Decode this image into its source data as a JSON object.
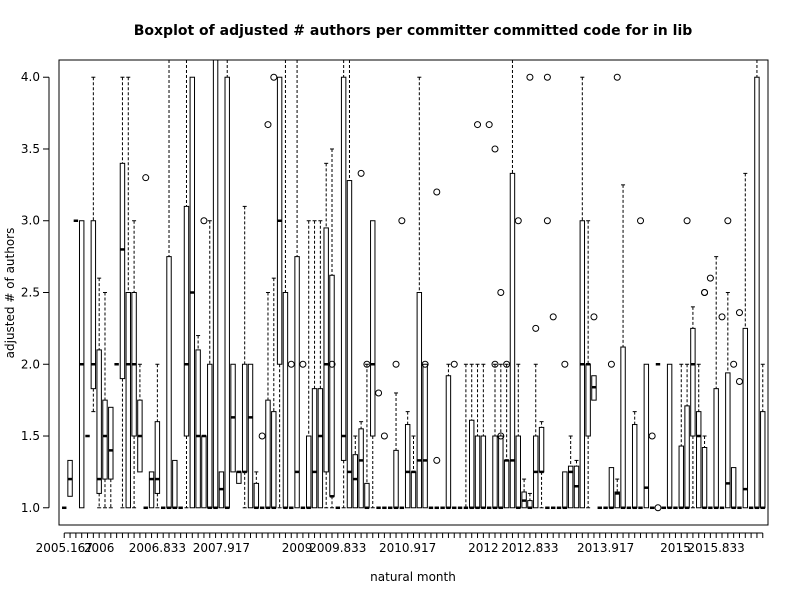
{
  "chart_data": {
    "type": "boxplot",
    "title": "Boxplot of adjusted # authors per committer committed code for in lib",
    "xlabel": "natural month",
    "ylabel": "adjusted # of authors",
    "ylim": [
      0.88,
      4.12
    ],
    "yticks": [
      1.0,
      1.5,
      2.0,
      2.5,
      3.0,
      3.5,
      4.0
    ],
    "ytick_labels": [
      "1.0",
      "1.5",
      "2.0",
      "2.5",
      "3.0",
      "3.5",
      "4.0"
    ],
    "x_tick_labels": [
      "2005.167",
      "2006",
      "2006.833",
      "2007.917",
      "2009",
      "2009.833",
      "2010.917",
      "2012",
      "2012.833",
      "2013.917",
      "2015",
      "2015.833"
    ],
    "x_tick_indices": [
      1,
      7,
      17,
      28,
      41,
      48,
      60,
      73,
      81,
      94,
      106,
      113
    ],
    "x_start": 2005.167,
    "x_step": 0.0833,
    "box_count": 121,
    "grid": false,
    "boxes": [
      {
        "i": 1,
        "stats": [
          1,
          1,
          1,
          1,
          1
        ]
      },
      {
        "i": 2,
        "stats": [
          1.08,
          1.08,
          1.2,
          1.33,
          1.33
        ]
      },
      {
        "i": 3,
        "stats": [
          3.0,
          3.0,
          3.0,
          3.0,
          3.0
        ]
      },
      {
        "i": 4,
        "stats": [
          1.0,
          1.0,
          2.0,
          3.0,
          3.0
        ]
      },
      {
        "i": 5,
        "stats": [
          1.5,
          1.5,
          1.5,
          1.5,
          1.5
        ]
      },
      {
        "i": 6,
        "stats": [
          1.67,
          1.83,
          2.0,
          3.0,
          4.0
        ]
      },
      {
        "i": 7,
        "stats": [
          1.0,
          1.1,
          1.2,
          2.1,
          2.6
        ]
      },
      {
        "i": 8,
        "stats": [
          1.0,
          1.2,
          1.5,
          1.75,
          2.5
        ]
      },
      {
        "i": 9,
        "stats": [
          1.0,
          1.2,
          1.4,
          1.7,
          1.7
        ]
      },
      {
        "i": 10,
        "stats": [
          2.0,
          2.0,
          2.0,
          2.0,
          2.0
        ]
      },
      {
        "i": 11,
        "stats": [
          1.0,
          1.9,
          2.8,
          3.4,
          4.0
        ]
      },
      {
        "i": 12,
        "stats": [
          1.0,
          1.0,
          2.0,
          2.5,
          4.0
        ]
      },
      {
        "i": 13,
        "stats": [
          1.0,
          1.5,
          2.0,
          2.5,
          3.0
        ]
      },
      {
        "i": 14,
        "stats": [
          1.25,
          1.25,
          1.5,
          1.75,
          2.0
        ]
      },
      {
        "i": 15,
        "stats": [
          1.0,
          1.0,
          1.0,
          1.0,
          1.0
        ],
        "outliers": [
          3.3
        ]
      },
      {
        "i": 16,
        "stats": [
          1.0,
          1.0,
          1.2,
          1.25,
          1.25
        ]
      },
      {
        "i": 17,
        "stats": [
          1.0,
          1.1,
          1.2,
          1.6,
          2.0
        ]
      },
      {
        "i": 18,
        "stats": [
          1.0,
          1.0,
          1.0,
          1.0,
          1.0
        ]
      },
      {
        "i": 19,
        "stats": [
          1.0,
          1.0,
          1.0,
          2.75,
          4.12
        ]
      },
      {
        "i": 20,
        "stats": [
          1.0,
          1.0,
          1.0,
          1.33,
          1.33
        ]
      },
      {
        "i": 21,
        "stats": [
          1.0,
          1.0,
          1.0,
          1.0,
          1.0
        ]
      },
      {
        "i": 22,
        "stats": [
          1.0,
          1.5,
          2.0,
          3.1,
          4.12
        ]
      },
      {
        "i": 23,
        "stats": [
          1.0,
          1.0,
          2.5,
          4.0,
          4.0
        ]
      },
      {
        "i": 24,
        "stats": [
          1.0,
          1.0,
          1.5,
          2.1,
          2.2
        ]
      },
      {
        "i": 25,
        "stats": [
          1.0,
          1.0,
          1.5,
          1.5,
          1.5
        ],
        "outliers": [
          3.0
        ]
      },
      {
        "i": 26,
        "stats": [
          1.0,
          1.0,
          1.0,
          2.0,
          3.0
        ]
      },
      {
        "i": 27,
        "stats": [
          1.0,
          1.0,
          1.0,
          4.12,
          4.12
        ]
      },
      {
        "i": 28,
        "stats": [
          1.0,
          1.0,
          1.13,
          1.25,
          1.25
        ]
      },
      {
        "i": 29,
        "stats": [
          1.0,
          1.0,
          1.0,
          4.0,
          4.12
        ]
      },
      {
        "i": 30,
        "stats": [
          1.25,
          1.25,
          1.63,
          2.0,
          2.0
        ]
      },
      {
        "i": 31,
        "stats": [
          1.17,
          1.17,
          1.25,
          1.25,
          1.25
        ]
      },
      {
        "i": 32,
        "stats": [
          1.0,
          1.25,
          1.25,
          2.0,
          3.1
        ]
      },
      {
        "i": 33,
        "stats": [
          1.0,
          1.0,
          1.63,
          2.0,
          2.0
        ]
      },
      {
        "i": 34,
        "stats": [
          1.0,
          1.0,
          1.0,
          1.17,
          1.25
        ]
      },
      {
        "i": 35,
        "stats": [
          1.0,
          1.0,
          1.0,
          1.0,
          1.0
        ],
        "outliers": [
          1.5
        ]
      },
      {
        "i": 36,
        "stats": [
          1.0,
          1.0,
          1.0,
          1.75,
          2.5
        ],
        "outliers": [
          3.67
        ]
      },
      {
        "i": 37,
        "stats": [
          1.0,
          1.0,
          1.0,
          1.67,
          2.6
        ],
        "outliers": [
          4.0
        ]
      },
      {
        "i": 38,
        "stats": [
          1.0,
          2.0,
          3.0,
          4.0,
          4.0
        ]
      },
      {
        "i": 39,
        "stats": [
          1.0,
          1.0,
          1.0,
          2.5,
          4.12
        ]
      },
      {
        "i": 40,
        "stats": [
          1.0,
          1.0,
          1.0,
          1.0,
          1.0
        ],
        "outliers": [
          2.0
        ]
      },
      {
        "i": 41,
        "stats": [
          1.0,
          1.0,
          1.25,
          2.75,
          4.12
        ]
      },
      {
        "i": 42,
        "stats": [
          1.0,
          1.0,
          1.0,
          1.0,
          1.0
        ],
        "outliers": [
          2.0
        ]
      },
      {
        "i": 43,
        "stats": [
          1.0,
          1.0,
          1.0,
          1.5,
          3.0
        ]
      },
      {
        "i": 44,
        "stats": [
          1.0,
          1.0,
          1.25,
          1.83,
          3.0
        ]
      },
      {
        "i": 45,
        "stats": [
          1.0,
          1.0,
          1.5,
          1.83,
          3.0
        ]
      },
      {
        "i": 46,
        "stats": [
          1.0,
          1.25,
          2.0,
          2.95,
          3.4
        ]
      },
      {
        "i": 47,
        "stats": [
          1.0,
          1.08,
          1.08,
          2.62,
          3.5
        ],
        "outliers": [
          2.0
        ]
      },
      {
        "i": 48,
        "stats": [
          1.0,
          1.0,
          1.0,
          1.0,
          1.0
        ]
      },
      {
        "i": 49,
        "stats": [
          1.0,
          1.33,
          1.5,
          4.0,
          4.12
        ]
      },
      {
        "i": 50,
        "stats": [
          1.0,
          1.0,
          1.25,
          3.28,
          4.12
        ]
      },
      {
        "i": 51,
        "stats": [
          1.0,
          1.0,
          1.2,
          1.37,
          1.5
        ]
      },
      {
        "i": 52,
        "stats": [
          1.0,
          1.0,
          1.33,
          1.55,
          1.6
        ],
        "outliers": [
          3.33
        ]
      },
      {
        "i": 53,
        "stats": [
          1.0,
          1.0,
          1.0,
          1.17,
          2.0
        ],
        "outliers": [
          2.0
        ]
      },
      {
        "i": 54,
        "stats": [
          1.0,
          1.5,
          2.0,
          3.0,
          3.0
        ]
      },
      {
        "i": 55,
        "stats": [
          1.0,
          1.0,
          1.0,
          1.0,
          1.0
        ],
        "outliers": [
          1.8
        ]
      },
      {
        "i": 56,
        "stats": [
          1.0,
          1.0,
          1.0,
          1.0,
          1.0
        ],
        "outliers": [
          1.5
        ]
      },
      {
        "i": 57,
        "stats": [
          1.0,
          1.0,
          1.0,
          1.0,
          1.0
        ]
      },
      {
        "i": 58,
        "stats": [
          1.0,
          1.0,
          1.0,
          1.4,
          1.8
        ],
        "outliers": [
          2.0
        ]
      },
      {
        "i": 59,
        "stats": [
          1.0,
          1.0,
          1.0,
          1.0,
          1.0
        ],
        "outliers": [
          3.0
        ]
      },
      {
        "i": 60,
        "stats": [
          1.0,
          1.0,
          1.25,
          1.58,
          1.67
        ]
      },
      {
        "i": 61,
        "stats": [
          1.0,
          1.0,
          1.25,
          1.25,
          1.5
        ]
      },
      {
        "i": 62,
        "stats": [
          1.0,
          1.0,
          1.33,
          2.5,
          4.0
        ]
      },
      {
        "i": 63,
        "stats": [
          1.0,
          1.0,
          1.33,
          2.0,
          2.0
        ],
        "outliers": [
          2.0
        ]
      },
      {
        "i": 64,
        "stats": [
          1.0,
          1.0,
          1.0,
          1.0,
          1.0
        ]
      },
      {
        "i": 65,
        "stats": [
          1.0,
          1.0,
          1.0,
          1.0,
          1.0
        ],
        "outliers": [
          1.33,
          3.2
        ]
      },
      {
        "i": 66,
        "stats": [
          1.0,
          1.0,
          1.0,
          1.0,
          1.0
        ]
      },
      {
        "i": 67,
        "stats": [
          1.0,
          1.0,
          1.0,
          1.92,
          2.0
        ]
      },
      {
        "i": 68,
        "stats": [
          1.0,
          1.0,
          1.0,
          1.0,
          1.0
        ],
        "outliers": [
          2.0
        ]
      },
      {
        "i": 69,
        "stats": [
          1.0,
          1.0,
          1.0,
          1.0,
          1.0
        ]
      },
      {
        "i": 70,
        "stats": [
          1.0,
          1.0,
          1.0,
          1.0,
          2.0
        ]
      },
      {
        "i": 71,
        "stats": [
          1.0,
          1.0,
          1.0,
          1.61,
          2.0
        ]
      },
      {
        "i": 72,
        "stats": [
          1.0,
          1.0,
          1.0,
          1.5,
          2.0
        ],
        "outliers": [
          3.67
        ]
      },
      {
        "i": 73,
        "stats": [
          1.0,
          1.0,
          1.0,
          1.5,
          2.0
        ]
      },
      {
        "i": 74,
        "stats": [
          1.0,
          1.0,
          1.0,
          1.0,
          1.0
        ],
        "outliers": [
          3.67
        ]
      },
      {
        "i": 75,
        "stats": [
          1.0,
          1.0,
          1.0,
          1.5,
          2.0
        ],
        "outliers": [
          2.0,
          3.5
        ]
      },
      {
        "i": 76,
        "stats": [
          1.0,
          1.0,
          1.0,
          1.5,
          2.0
        ],
        "outliers": [
          1.5,
          2.5
        ]
      },
      {
        "i": 77,
        "stats": [
          1.0,
          1.0,
          1.33,
          1.33,
          2.0
        ],
        "outliers": [
          2.0
        ]
      },
      {
        "i": 78,
        "stats": [
          1.0,
          1.0,
          1.33,
          3.33,
          4.12
        ]
      },
      {
        "i": 79,
        "stats": [
          1.0,
          1.0,
          1.0,
          1.5,
          2.0
        ],
        "outliers": [
          3.0
        ]
      },
      {
        "i": 80,
        "stats": [
          1.0,
          1.0,
          1.05,
          1.11,
          1.2
        ]
      },
      {
        "i": 81,
        "stats": [
          1.0,
          1.0,
          1.0,
          1.05,
          1.1
        ],
        "outliers": [
          4.0
        ]
      },
      {
        "i": 82,
        "stats": [
          1.0,
          1.0,
          1.25,
          1.5,
          2.0
        ],
        "outliers": [
          2.25
        ]
      },
      {
        "i": 83,
        "stats": [
          1.0,
          1.25,
          1.25,
          1.56,
          1.6
        ]
      },
      {
        "i": 84,
        "stats": [
          1.0,
          1.0,
          1.0,
          1.0,
          1.0
        ],
        "outliers": [
          3.0,
          4.0
        ]
      },
      {
        "i": 85,
        "stats": [
          1.0,
          1.0,
          1.0,
          1.0,
          1.0
        ],
        "outliers": [
          2.33
        ]
      },
      {
        "i": 86,
        "stats": [
          1.0,
          1.0,
          1.0,
          1.0,
          1.0
        ]
      },
      {
        "i": 87,
        "stats": [
          1.0,
          1.0,
          1.0,
          1.25,
          1.25
        ],
        "outliers": [
          2.0
        ]
      },
      {
        "i": 88,
        "stats": [
          1.0,
          1.0,
          1.25,
          1.29,
          1.5
        ]
      },
      {
        "i": 89,
        "stats": [
          1.0,
          1.0,
          1.15,
          1.29,
          1.33
        ]
      },
      {
        "i": 90,
        "stats": [
          1.0,
          1.0,
          2.0,
          3.0,
          4.0
        ]
      },
      {
        "i": 91,
        "stats": [
          1.0,
          1.5,
          2.0,
          2.0,
          3.0
        ]
      },
      {
        "i": 92,
        "stats": [
          1.75,
          1.75,
          1.84,
          1.92,
          1.92
        ],
        "outliers": [
          2.33
        ]
      },
      {
        "i": 93,
        "stats": [
          1.0,
          1.0,
          1.0,
          1.0,
          1.0
        ]
      },
      {
        "i": 94,
        "stats": [
          1.0,
          1.0,
          1.0,
          1.0,
          1.0
        ]
      },
      {
        "i": 95,
        "stats": [
          1.0,
          1.0,
          1.0,
          1.28,
          1.28
        ],
        "outliers": [
          2.0
        ]
      },
      {
        "i": 96,
        "stats": [
          1.0,
          1.0,
          1.1,
          1.11,
          1.2
        ],
        "outliers": [
          4.0
        ]
      },
      {
        "i": 97,
        "stats": [
          1.0,
          1.0,
          1.0,
          2.12,
          3.25
        ]
      },
      {
        "i": 98,
        "stats": [
          1.0,
          1.0,
          1.0,
          1.0,
          1.0
        ]
      },
      {
        "i": 99,
        "stats": [
          1.0,
          1.0,
          1.0,
          1.58,
          1.67
        ]
      },
      {
        "i": 100,
        "stats": [
          1.0,
          1.0,
          1.0,
          1.0,
          1.0
        ],
        "outliers": [
          3.0
        ]
      },
      {
        "i": 101,
        "stats": [
          1.0,
          1.0,
          1.14,
          2.0,
          2.0
        ]
      },
      {
        "i": 102,
        "stats": [
          1.0,
          1.0,
          1.0,
          1.0,
          1.0
        ],
        "outliers": [
          1.5
        ]
      },
      {
        "i": 103,
        "stats": [
          2.0,
          2.0,
          2.0,
          2.0,
          2.0
        ],
        "outliers": [
          1.0
        ]
      },
      {
        "i": 104,
        "stats": [
          1.0,
          1.0,
          1.0,
          1.0,
          1.0
        ]
      },
      {
        "i": 105,
        "stats": [
          1.0,
          1.0,
          1.0,
          2.0,
          2.0
        ]
      },
      {
        "i": 106,
        "stats": [
          1.0,
          1.0,
          1.0,
          1.0,
          1.0
        ]
      },
      {
        "i": 107,
        "stats": [
          1.0,
          1.0,
          1.0,
          1.43,
          2.0
        ]
      },
      {
        "i": 108,
        "stats": [
          1.0,
          1.0,
          1.0,
          1.71,
          2.0
        ],
        "outliers": [
          3.0
        ]
      },
      {
        "i": 109,
        "stats": [
          1.0,
          1.5,
          2.0,
          2.25,
          2.4
        ]
      },
      {
        "i": 110,
        "stats": [
          1.0,
          1.0,
          1.5,
          1.67,
          2.0
        ]
      },
      {
        "i": 111,
        "stats": [
          1.0,
          1.0,
          1.0,
          1.42,
          1.5
        ],
        "outliers": [
          2.5,
          2.5
        ]
      },
      {
        "i": 112,
        "stats": [
          1.0,
          1.0,
          1.0,
          1.0,
          1.0
        ],
        "outliers": [
          2.6
        ]
      },
      {
        "i": 113,
        "stats": [
          1.0,
          1.0,
          1.0,
          1.83,
          2.75
        ]
      },
      {
        "i": 114,
        "stats": [
          1.0,
          1.0,
          1.0,
          1.0,
          1.0
        ],
        "outliers": [
          2.33
        ]
      },
      {
        "i": 115,
        "stats": [
          1.0,
          1.0,
          1.17,
          1.94,
          2.5
        ],
        "outliers": [
          3.0
        ]
      },
      {
        "i": 116,
        "stats": [
          1.0,
          1.0,
          1.0,
          1.28,
          1.28
        ],
        "outliers": [
          2.0
        ]
      },
      {
        "i": 117,
        "stats": [
          1.0,
          1.0,
          1.0,
          1.0,
          1.0
        ],
        "outliers": [
          1.88,
          2.36
        ]
      },
      {
        "i": 118,
        "stats": [
          1.0,
          1.0,
          1.13,
          2.25,
          3.33
        ]
      },
      {
        "i": 119,
        "stats": [
          1.0,
          1.0,
          1.0,
          1.0,
          1.0
        ]
      },
      {
        "i": 120,
        "stats": [
          1.0,
          1.0,
          1.0,
          4.0,
          4.12
        ]
      },
      {
        "i": 121,
        "stats": [
          1.0,
          1.0,
          1.0,
          1.67,
          2.0
        ]
      }
    ]
  }
}
